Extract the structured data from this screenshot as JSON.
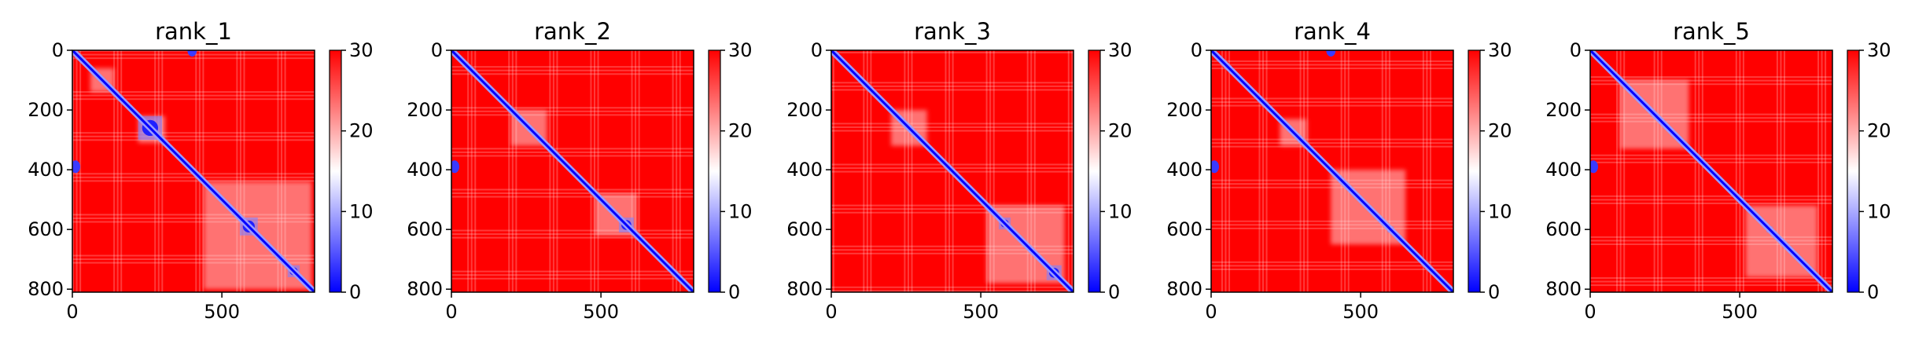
{
  "figure": {
    "colormap": "bwr",
    "colormap_colors": [
      "#0000ff",
      "#ffffff",
      "#ff0000"
    ]
  },
  "chart_data": [
    {
      "type": "heatmap",
      "title": "rank_1",
      "matrix_size": 810,
      "xlim": [
        0,
        810
      ],
      "ylim": [
        810,
        0
      ],
      "xticks": [
        0,
        500
      ],
      "yticks": [
        0,
        200,
        400,
        600,
        800
      ],
      "colorbar": {
        "range": [
          0,
          30
        ],
        "ticks": [
          0,
          10,
          20,
          30
        ]
      },
      "pattern": {
        "diagonal_blue": true,
        "blue_blocks": [
          [
            220,
            300
          ],
          [
            375,
            390
          ],
          [
            560,
            620
          ],
          [
            720,
            760
          ]
        ],
        "light_regions": [
          [
            60,
            140
          ],
          [
            220,
            310
          ],
          [
            440,
            800
          ]
        ],
        "edge_blue_spots": [
          [
            390,
            0
          ],
          [
            0,
            390
          ]
        ]
      }
    },
    {
      "type": "heatmap",
      "title": "rank_2",
      "matrix_size": 810,
      "xlim": [
        0,
        810
      ],
      "ylim": [
        810,
        0
      ],
      "xticks": [
        0,
        500
      ],
      "yticks": [
        0,
        200,
        400,
        600,
        800
      ],
      "colorbar": {
        "range": [
          0,
          30
        ],
        "ticks": [
          0,
          10,
          20,
          30
        ]
      },
      "pattern": {
        "diagonal_blue": true,
        "blue_blocks": [
          [
            375,
            390
          ],
          [
            560,
            610
          ]
        ],
        "light_regions": [
          [
            200,
            320
          ],
          [
            480,
            620
          ]
        ],
        "edge_blue_spots": [
          [
            390,
            0
          ]
        ]
      }
    },
    {
      "type": "heatmap",
      "title": "rank_3",
      "matrix_size": 810,
      "xlim": [
        0,
        810
      ],
      "ylim": [
        810,
        0
      ],
      "xticks": [
        0,
        500
      ],
      "yticks": [
        0,
        200,
        400,
        600,
        800
      ],
      "colorbar": {
        "range": [
          0,
          30
        ],
        "ticks": [
          0,
          10,
          20,
          30
        ]
      },
      "pattern": {
        "diagonal_blue": true,
        "blue_blocks": [
          [
            375,
            390
          ],
          [
            560,
            600
          ],
          [
            720,
            770
          ]
        ],
        "light_regions": [
          [
            200,
            320
          ],
          [
            520,
            780
          ]
        ],
        "edge_blue_spots": []
      }
    },
    {
      "type": "heatmap",
      "title": "rank_4",
      "matrix_size": 810,
      "xlim": [
        0,
        810
      ],
      "ylim": [
        810,
        0
      ],
      "xticks": [
        0,
        500
      ],
      "yticks": [
        0,
        200,
        400,
        600,
        800
      ],
      "colorbar": {
        "range": [
          0,
          30
        ],
        "ticks": [
          0,
          10,
          20,
          30
        ]
      },
      "pattern": {
        "diagonal_blue": true,
        "blue_blocks": [
          [
            375,
            390
          ],
          [
            590,
            610
          ]
        ],
        "light_regions": [
          [
            230,
            320
          ],
          [
            400,
            650
          ]
        ],
        "edge_blue_spots": [
          [
            390,
            0
          ],
          [
            0,
            390
          ]
        ]
      }
    },
    {
      "type": "heatmap",
      "title": "rank_5",
      "matrix_size": 810,
      "xlim": [
        0,
        810
      ],
      "ylim": [
        810,
        0
      ],
      "xticks": [
        0,
        500
      ],
      "yticks": [
        0,
        200,
        400,
        600,
        800
      ],
      "colorbar": {
        "range": [
          0,
          30
        ],
        "ticks": [
          0,
          10,
          20,
          30
        ]
      },
      "pattern": {
        "diagonal_blue": true,
        "blue_blocks": [
          [
            375,
            390
          ],
          [
            590,
            610
          ]
        ],
        "light_regions": [
          [
            100,
            330
          ],
          [
            520,
            760
          ]
        ],
        "edge_blue_spots": [
          [
            390,
            0
          ]
        ]
      }
    }
  ]
}
